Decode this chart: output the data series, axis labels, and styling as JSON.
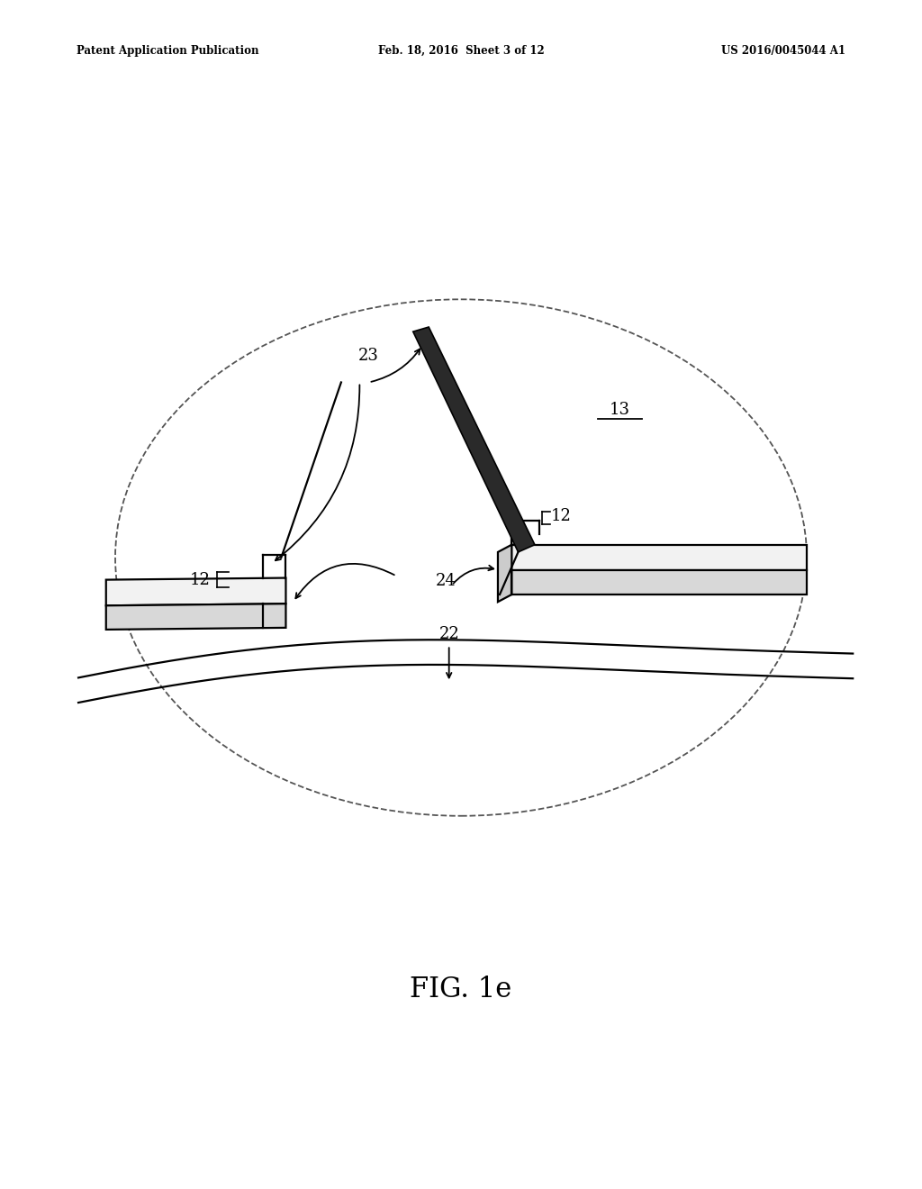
{
  "bg_color": "#ffffff",
  "header_left": "Patent Application Publication",
  "header_mid": "Feb. 18, 2016  Sheet 3 of 12",
  "header_right": "US 2016/0045044 A1",
  "fig_label": "FIG. 1e",
  "label_23": "23",
  "label_13": "13",
  "label_12": "12",
  "label_12b": "12",
  "label_22": "22",
  "label_24": "24"
}
